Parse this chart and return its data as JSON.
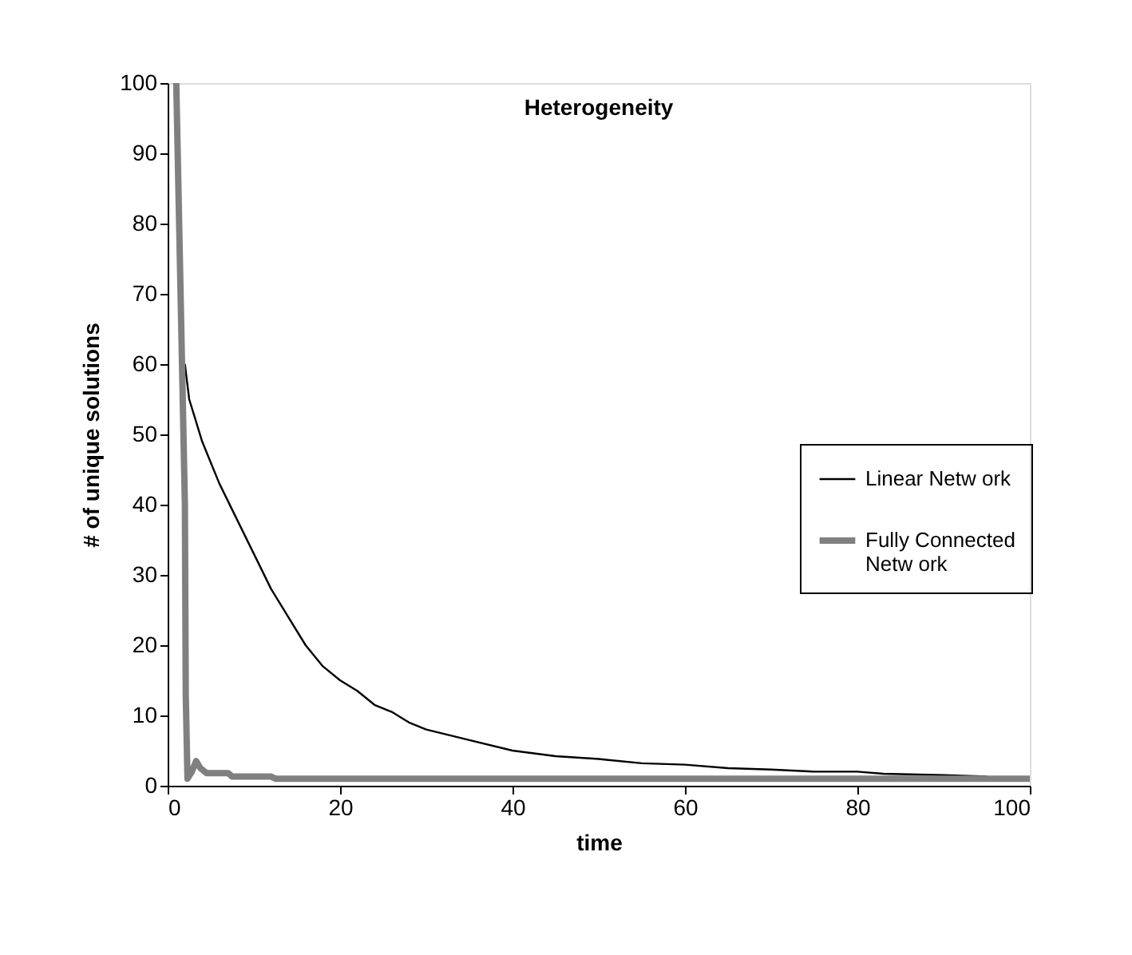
{
  "chart_data": {
    "type": "line",
    "title": "Heterogeneity",
    "xlabel": "time",
    "ylabel": "# of unique solutions",
    "xlim": [
      0,
      100
    ],
    "xticks": [
      0,
      20,
      40,
      60,
      80,
      100
    ],
    "ylim": [
      0,
      100
    ],
    "yticks": [
      0,
      10,
      20,
      30,
      40,
      50,
      60,
      70,
      80,
      90,
      100
    ],
    "grid": false,
    "legend": "right",
    "marker": "none",
    "line_style": "solid",
    "series": [
      {
        "name": "Linear Netw ork",
        "color": "#000000",
        "x": [
          2,
          2.5,
          3,
          4,
          5,
          6,
          8,
          10,
          12,
          14,
          16,
          18,
          20,
          22,
          24,
          26,
          28,
          30,
          35,
          40,
          45,
          50,
          55,
          60,
          65,
          70,
          75,
          80,
          83,
          90,
          95
        ],
        "values": [
          60,
          55,
          53,
          49,
          46,
          43,
          38,
          33,
          28,
          24,
          20,
          17,
          15,
          13.5,
          11.5,
          10.5,
          9,
          8,
          6.5,
          5,
          4.2,
          3.8,
          3.2,
          3,
          2.5,
          2.3,
          2,
          2,
          1.7,
          1.5,
          1.3
        ]
      },
      {
        "name": "Fully Connected Netw ork",
        "color": "#808080",
        "x": [
          1,
          1.5,
          2,
          2.1,
          2.3,
          2.8,
          3.3,
          3.8,
          4.5,
          7,
          7.5,
          12,
          12.5,
          100
        ],
        "values": [
          100,
          70,
          40,
          13,
          1,
          2,
          3.5,
          2.5,
          1.8,
          1.8,
          1.3,
          1.3,
          1,
          1
        ]
      }
    ]
  }
}
